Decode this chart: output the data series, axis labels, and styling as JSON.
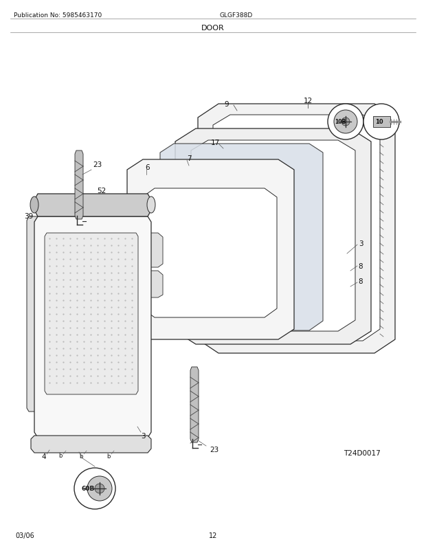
{
  "title": "DOOR",
  "pub_no": "Publication No: 5985463170",
  "model": "GLGF388D",
  "diagram_id": "T24D0017",
  "date": "03/06",
  "page": "12",
  "bg_color": "#ffffff",
  "line_color": "#2a2a2a",
  "label_color": "#111111",
  "figsize": [
    6.2,
    8.03
  ],
  "dpi": 100
}
